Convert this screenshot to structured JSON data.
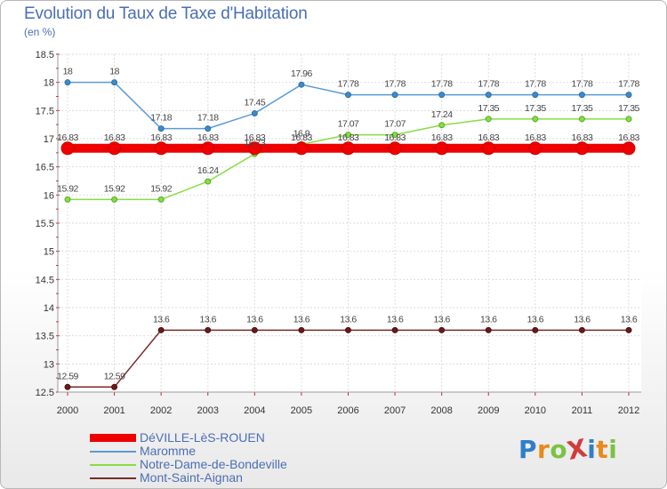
{
  "chart_data": {
    "type": "line",
    "title": "Evolution du Taux de Taxe d'Habitation",
    "unit_label": "(en %)",
    "x": [
      "2000",
      "2001",
      "2002",
      "2003",
      "2004",
      "2005",
      "2006",
      "2007",
      "2008",
      "2009",
      "2010",
      "2011",
      "2012"
    ],
    "ylim": [
      12.5,
      18.5
    ],
    "yticks": [
      "12.5",
      "13",
      "13.5",
      "14",
      "14.5",
      "15",
      "15.5",
      "16",
      "16.5",
      "17",
      "17.5",
      "18",
      "18.5"
    ],
    "grid": true,
    "series": [
      {
        "name": "DéVILLE-LèS-ROUEN",
        "color": "#ee0000",
        "values": [
          16.83,
          16.83,
          16.83,
          16.83,
          16.83,
          16.83,
          16.83,
          16.83,
          16.83,
          16.83,
          16.83,
          16.83,
          16.83
        ],
        "labels": [
          "16.83",
          "16.83",
          "16.83",
          "16.83",
          "16.83",
          "16.83",
          "16.83",
          "16.83",
          "16.83",
          "16.83",
          "16.83",
          "16.83",
          "16.83"
        ]
      },
      {
        "name": "Maromme",
        "color": "#5b9bd5",
        "values": [
          18,
          18,
          17.18,
          17.18,
          17.45,
          17.96,
          17.78,
          17.78,
          17.78,
          17.78,
          17.78,
          17.78,
          17.78
        ],
        "labels": [
          "18",
          "18",
          "17.18",
          "17.18",
          "17.45",
          "17.96",
          "17.78",
          "17.78",
          "17.78",
          "17.78",
          "17.78",
          "17.78",
          "17.78"
        ]
      },
      {
        "name": "Notre-Dame-de-Bondeville",
        "color": "#88dd44",
        "values": [
          15.92,
          15.92,
          15.92,
          16.24,
          16.73,
          16.9,
          17.07,
          17.07,
          17.24,
          17.35,
          17.35,
          17.35,
          17.35
        ],
        "labels": [
          "15.92",
          "15.92",
          "15.92",
          "16.24",
          "16.73",
          "16.9",
          "17.07",
          "17.07",
          "17.24",
          "17.35",
          "17.35",
          "17.35",
          "17.35"
        ]
      },
      {
        "name": "Mont-Saint-Aignan",
        "color": "#7a2a2a",
        "values": [
          12.59,
          12.59,
          13.6,
          13.6,
          13.6,
          13.6,
          13.6,
          13.6,
          13.6,
          13.6,
          13.6,
          13.6,
          13.6
        ],
        "labels": [
          "12.59",
          "12.59",
          "13.6",
          "13.6",
          "13.6",
          "13.6",
          "13.6",
          "13.6",
          "13.6",
          "13.6",
          "13.6",
          "13.6",
          "13.6"
        ]
      }
    ]
  },
  "logo": {
    "text": "ProXiti",
    "colors": [
      "#2f7fc8",
      "#e88a1c",
      "#7cc242",
      "#d23c3c",
      "#2f7fc8",
      "#e88a1c",
      "#7cc242"
    ]
  }
}
